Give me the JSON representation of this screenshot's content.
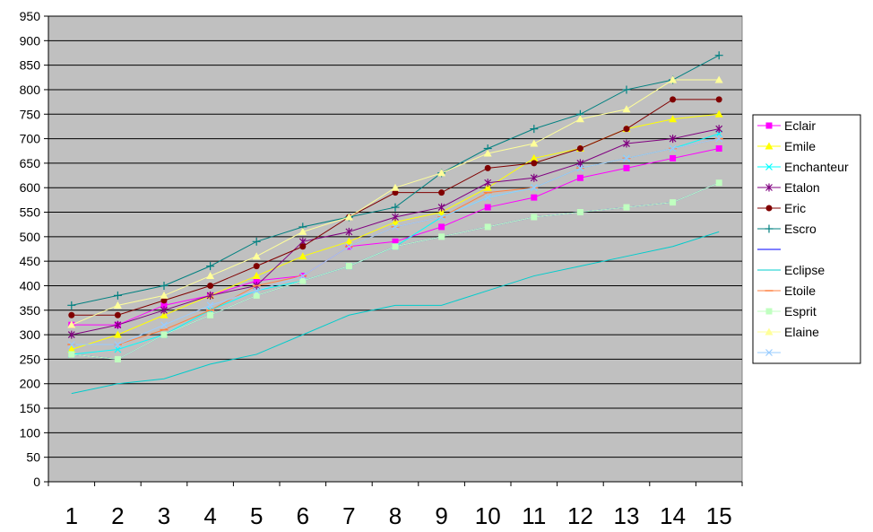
{
  "chart_data": {
    "type": "line",
    "title": "",
    "xlabel": "",
    "ylabel": "",
    "x": [
      1,
      2,
      3,
      4,
      5,
      6,
      7,
      8,
      9,
      10,
      11,
      12,
      13,
      14,
      15
    ],
    "ylim": [
      0,
      950
    ],
    "y_ticks": [
      0,
      50,
      100,
      150,
      200,
      250,
      300,
      350,
      400,
      450,
      500,
      550,
      600,
      650,
      700,
      750,
      800,
      850,
      900,
      950
    ],
    "grid": true,
    "plot_background": "#c0c0c0",
    "legend_position": "right",
    "series": [
      {
        "name": "Eclair",
        "color": "#ff00ff",
        "marker": "square",
        "values": [
          320,
          320,
          360,
          380,
          410,
          420,
          480,
          490,
          520,
          560,
          580,
          620,
          640,
          660,
          680
        ]
      },
      {
        "name": "Emile",
        "color": "#ffff00",
        "marker": "triangle",
        "values": [
          270,
          300,
          340,
          380,
          420,
          460,
          490,
          530,
          550,
          600,
          660,
          680,
          720,
          740,
          750
        ]
      },
      {
        "name": "Enchanteur",
        "color": "#00ffff",
        "marker": "x",
        "values": [
          260,
          270,
          300,
          350,
          390,
          410,
          440,
          480,
          540,
          580,
          600,
          640,
          660,
          680,
          710
        ]
      },
      {
        "name": "Etalon",
        "color": "#800080",
        "marker": "star",
        "values": [
          300,
          320,
          350,
          380,
          400,
          490,
          510,
          540,
          560,
          610,
          620,
          650,
          690,
          700,
          720
        ]
      },
      {
        "name": "Eric",
        "color": "#800000",
        "marker": "circle",
        "values": [
          340,
          340,
          370,
          400,
          440,
          480,
          540,
          590,
          590,
          640,
          650,
          680,
          720,
          780,
          780
        ]
      },
      {
        "name": "Escro",
        "color": "#008080",
        "marker": "plus",
        "values": [
          360,
          380,
          400,
          440,
          490,
          520,
          540,
          560,
          630,
          680,
          720,
          750,
          800,
          820,
          870
        ]
      },
      {
        "name": "",
        "color": "#0000ff",
        "marker": "none",
        "values": [
          260,
          250,
          300,
          340,
          380,
          410,
          440,
          480,
          500,
          520,
          540,
          550,
          560,
          570,
          610
        ]
      },
      {
        "name": "Eclipse",
        "color": "#00cccc",
        "marker": "none",
        "values": [
          180,
          200,
          210,
          240,
          260,
          300,
          340,
          360,
          360,
          390,
          420,
          440,
          460,
          480,
          510
        ]
      },
      {
        "name": "Etoile",
        "color": "#ff8040",
        "marker": "dash",
        "values": [
          280,
          280,
          310,
          350,
          400,
          420,
          480,
          520,
          540,
          590,
          600,
          640,
          660,
          680,
          700
        ]
      },
      {
        "name": "Esprit",
        "color": "#c0ffc0",
        "marker": "square",
        "values": [
          260,
          250,
          300,
          340,
          380,
          410,
          440,
          480,
          500,
          520,
          540,
          550,
          560,
          570,
          610
        ]
      },
      {
        "name": "Elaine",
        "color": "#ffff99",
        "marker": "triangle",
        "values": [
          320,
          360,
          380,
          420,
          460,
          510,
          540,
          600,
          630,
          670,
          690,
          740,
          760,
          820,
          820
        ]
      },
      {
        "name": "",
        "color": "#99ccff",
        "marker": "x",
        "values": [
          280,
          280,
          320,
          360,
          390,
          420,
          480,
          520,
          540,
          580,
          600,
          640,
          660,
          680,
          700
        ]
      }
    ]
  }
}
